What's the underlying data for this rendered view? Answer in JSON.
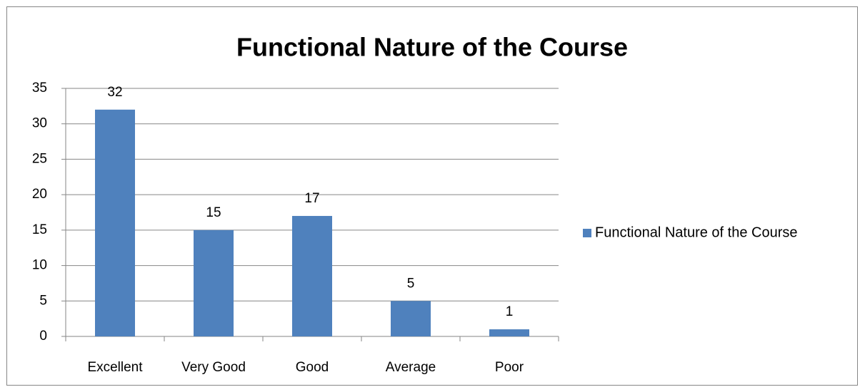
{
  "chart_data": {
    "type": "bar",
    "title": "Functional Nature of the Course",
    "categories": [
      "Excellent",
      "Very Good",
      "Good",
      "Average",
      "Poor"
    ],
    "series": [
      {
        "name": "Functional Nature of the Course",
        "color": "#4f81bd",
        "values": [
          32,
          15,
          17,
          5,
          1
        ]
      }
    ],
    "ylim": [
      0,
      35
    ],
    "yticks": [
      0,
      5,
      10,
      15,
      20,
      25,
      30,
      35
    ],
    "grid": true,
    "legend": "right"
  }
}
